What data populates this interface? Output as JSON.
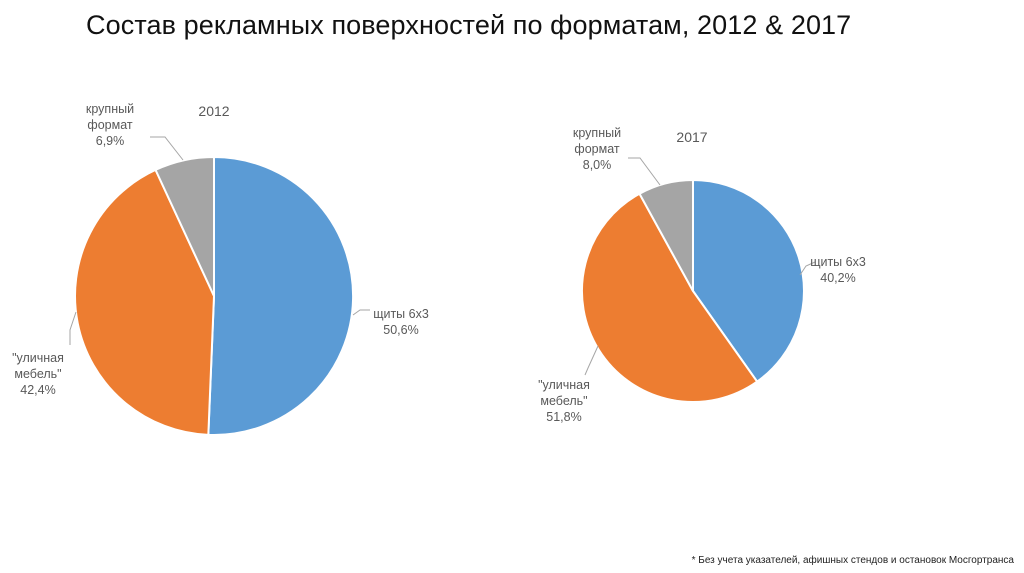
{
  "page": {
    "title": "Состав рекламных поверхностей по форматам, 2012 & 2017",
    "footnote": "Без учета указателей, афишных стендов и остановок Мосгортранса"
  },
  "colors": {
    "shields": "#5B9BD5",
    "street_furniture": "#ED7D31",
    "large_format": "#A5A5A5",
    "label": "#595959",
    "leader": "#A6A6A6"
  },
  "chart_data": [
    {
      "type": "pie",
      "title": "2012",
      "slices": [
        {
          "key": "shields",
          "label_lines": [
            "щиты 6х3",
            "50,6%"
          ],
          "value": 50.6,
          "color": "#5B9BD5"
        },
        {
          "key": "street_furniture",
          "label_lines": [
            "\"уличная",
            "мебель\"",
            "42,4%"
          ],
          "value": 42.4,
          "color": "#ED7D31"
        },
        {
          "key": "large_format",
          "label_lines": [
            "крупный",
            "формат",
            "6,9%"
          ],
          "value": 6.9,
          "color": "#A5A5A5"
        }
      ]
    },
    {
      "type": "pie",
      "title": "2017",
      "slices": [
        {
          "key": "shields",
          "label_lines": [
            "щиты 6х3",
            "40,2%"
          ],
          "value": 40.2,
          "color": "#5B9BD5"
        },
        {
          "key": "street_furniture",
          "label_lines": [
            "\"уличная",
            "мебель\"",
            "51,8%"
          ],
          "value": 51.8,
          "color": "#ED7D31"
        },
        {
          "key": "large_format",
          "label_lines": [
            "крупный",
            "формат",
            "8,0%"
          ],
          "value": 8.0,
          "color": "#A5A5A5"
        }
      ]
    }
  ]
}
